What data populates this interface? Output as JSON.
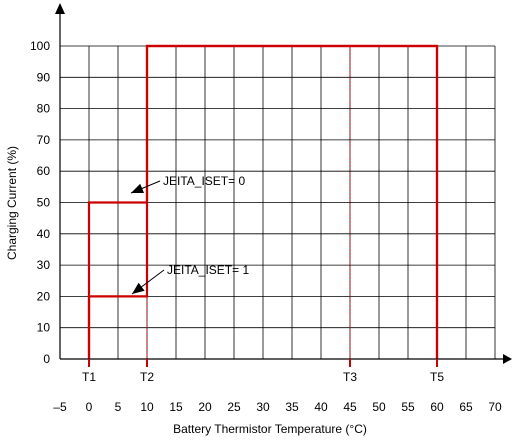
{
  "chart_data": {
    "type": "line",
    "xlabel": "Battery Thermistor Temperature (°C)",
    "ylabel": "Charging Current (%)",
    "xlim": [
      -5,
      70
    ],
    "ylim": [
      0,
      100
    ],
    "x_ticks": [
      "–5",
      "0",
      "5",
      "10",
      "15",
      "20",
      "25",
      "30",
      "35",
      "40",
      "45",
      "50",
      "55",
      "60",
      "65",
      "70"
    ],
    "y_ticks": [
      "0",
      "10",
      "20",
      "30",
      "40",
      "50",
      "60",
      "70",
      "80",
      "90",
      "100"
    ],
    "grid": true,
    "threshold_markers": [
      {
        "label": "T1",
        "x": 0
      },
      {
        "label": "T2",
        "x": 10
      },
      {
        "label": "T3",
        "x": 45
      },
      {
        "label": "T5",
        "x": 60
      }
    ],
    "series": [
      {
        "name": "JEITA_ISET= 0",
        "points": [
          [
            0,
            0
          ],
          [
            0,
            50
          ],
          [
            10,
            50
          ],
          [
            10,
            100
          ],
          [
            60,
            100
          ],
          [
            60,
            0
          ]
        ]
      },
      {
        "name": "JEITA_ISET= 1",
        "points": [
          [
            0,
            0
          ],
          [
            0,
            20
          ],
          [
            10,
            20
          ],
          [
            10,
            100
          ],
          [
            60,
            100
          ],
          [
            60,
            0
          ]
        ]
      }
    ],
    "annotations": [
      {
        "text": "JEITA_ISET= 0",
        "points_to": [
          7,
          50
        ]
      },
      {
        "text": "JEITA_ISET= 1",
        "points_to": [
          7,
          20
        ]
      }
    ],
    "colors": {
      "series": "#cc0000",
      "grid": "#000000"
    }
  }
}
